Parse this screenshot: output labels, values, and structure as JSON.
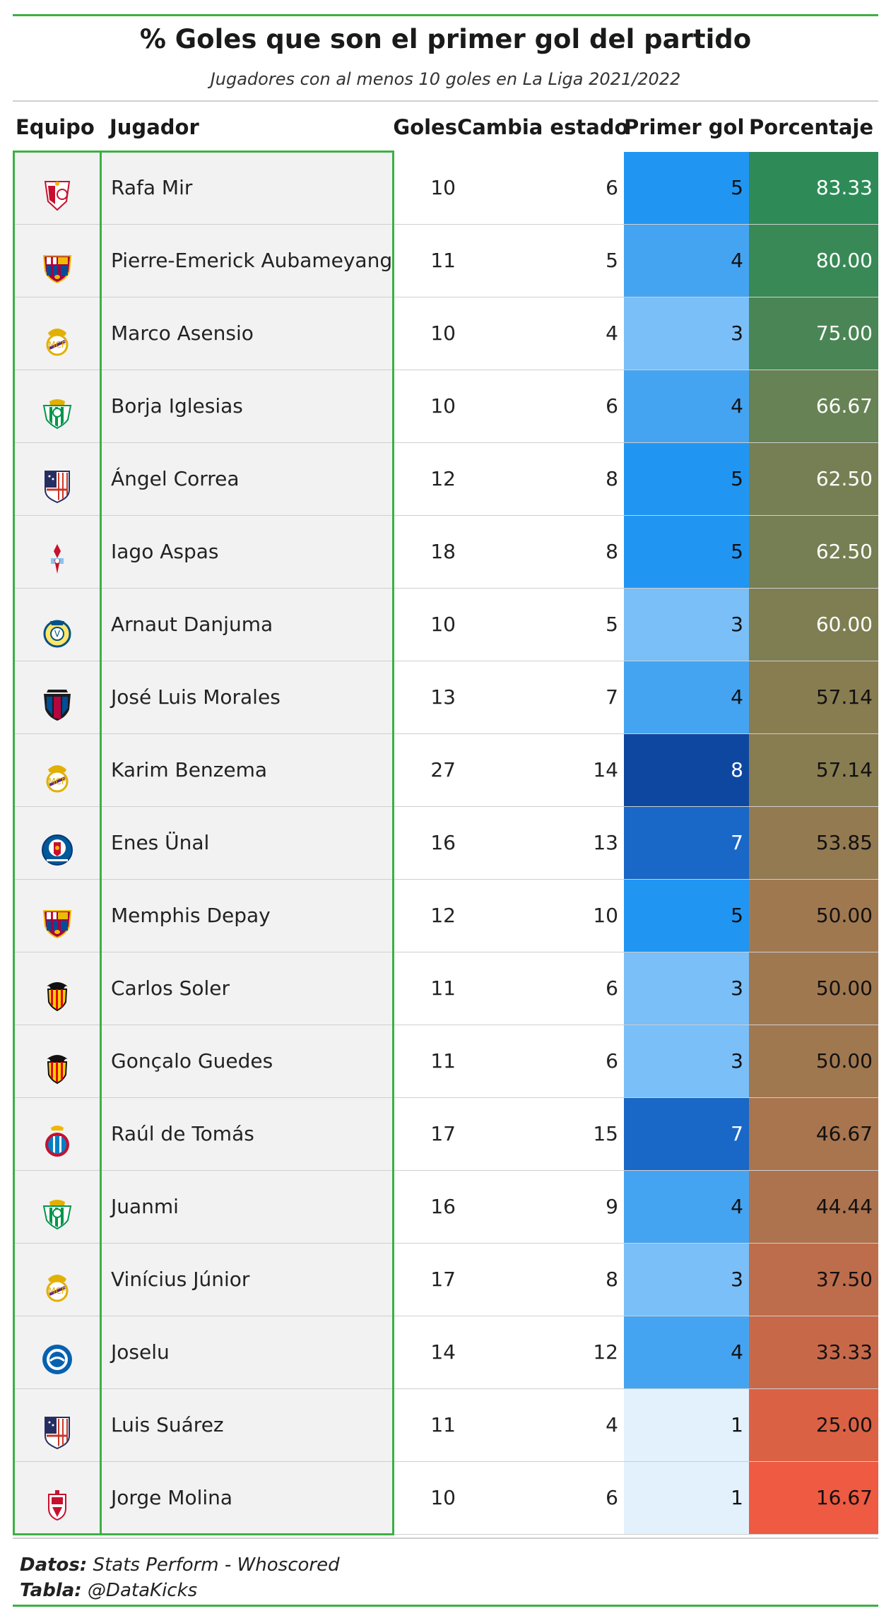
{
  "title": "% Goles que son el primer gol del partido",
  "subtitle": "Jugadores con al menos 10 goles en La Liga 2021/2022",
  "columns": {
    "equipo": "Equipo",
    "jugador": "Jugador",
    "goles": "Goles",
    "cambia": "Cambia estado",
    "primer": "Primer gol",
    "porcentaje": "Porcentaje"
  },
  "footer": {
    "datos_label": "Datos:",
    "datos_value": " Stats Perform - Whoscored",
    "tabla_label": "Tabla:",
    "tabla_value": " @DataKicks"
  },
  "chart_data": {
    "type": "table",
    "title": "% Goles que son el primer gol del partido",
    "subtitle": "Jugadores con al menos 10 goles en La Liga 2021/2022",
    "columns": [
      "Equipo",
      "Jugador",
      "Goles",
      "Cambia estado",
      "Primer gol",
      "Porcentaje"
    ],
    "rows": [
      {
        "team": "sevilla-crest-icon",
        "player": "Rafa Mir",
        "goles": "10",
        "cambia": "6",
        "primer": "5",
        "pct": "83.33"
      },
      {
        "team": "barcelona-crest-icon",
        "player": "Pierre-Emerick Aubameyang",
        "goles": "11",
        "cambia": "5",
        "primer": "4",
        "pct": "80.00"
      },
      {
        "team": "real-madrid-crest-icon",
        "player": "Marco Asensio",
        "goles": "10",
        "cambia": "4",
        "primer": "3",
        "pct": "75.00"
      },
      {
        "team": "betis-crest-icon",
        "player": "Borja Iglesias",
        "goles": "10",
        "cambia": "6",
        "primer": "4",
        "pct": "66.67"
      },
      {
        "team": "atletico-crest-icon",
        "player": "Ángel Correa",
        "goles": "12",
        "cambia": "8",
        "primer": "5",
        "pct": "62.50"
      },
      {
        "team": "celta-crest-icon",
        "player": "Iago Aspas",
        "goles": "18",
        "cambia": "8",
        "primer": "5",
        "pct": "62.50"
      },
      {
        "team": "villarreal-crest-icon",
        "player": "Arnaut Danjuma",
        "goles": "10",
        "cambia": "5",
        "primer": "3",
        "pct": "60.00"
      },
      {
        "team": "levante-crest-icon",
        "player": "José Luis Morales",
        "goles": "13",
        "cambia": "7",
        "primer": "4",
        "pct": "57.14"
      },
      {
        "team": "real-madrid-crest-icon",
        "player": "Karim Benzema",
        "goles": "27",
        "cambia": "14",
        "primer": "8",
        "pct": "57.14"
      },
      {
        "team": "getafe-crest-icon",
        "player": "Enes Ünal",
        "goles": "16",
        "cambia": "13",
        "primer": "7",
        "pct": "53.85"
      },
      {
        "team": "barcelona-crest-icon",
        "player": "Memphis Depay",
        "goles": "12",
        "cambia": "10",
        "primer": "5",
        "pct": "50.00"
      },
      {
        "team": "valencia-crest-icon",
        "player": "Carlos Soler",
        "goles": "11",
        "cambia": "6",
        "primer": "3",
        "pct": "50.00"
      },
      {
        "team": "valencia-crest-icon",
        "player": "Gonçalo Guedes",
        "goles": "11",
        "cambia": "6",
        "primer": "3",
        "pct": "50.00"
      },
      {
        "team": "espanyol-crest-icon",
        "player": "Raúl de Tomás",
        "goles": "17",
        "cambia": "15",
        "primer": "7",
        "pct": "46.67"
      },
      {
        "team": "betis-crest-icon",
        "player": "Juanmi",
        "goles": "16",
        "cambia": "9",
        "primer": "4",
        "pct": "44.44"
      },
      {
        "team": "real-madrid-crest-icon",
        "player": "Vinícius Júnior",
        "goles": "17",
        "cambia": "8",
        "primer": "3",
        "pct": "37.50"
      },
      {
        "team": "alaves-crest-icon",
        "player": "Joselu",
        "goles": "14",
        "cambia": "12",
        "primer": "4",
        "pct": "33.33"
      },
      {
        "team": "atletico-crest-icon",
        "player": "Luis Suárez",
        "goles": "11",
        "cambia": "4",
        "primer": "1",
        "pct": "25.00"
      },
      {
        "team": "granada-crest-icon",
        "player": "Jorge Molina",
        "goles": "10",
        "cambia": "6",
        "primer": "1",
        "pct": "16.67"
      }
    ]
  }
}
